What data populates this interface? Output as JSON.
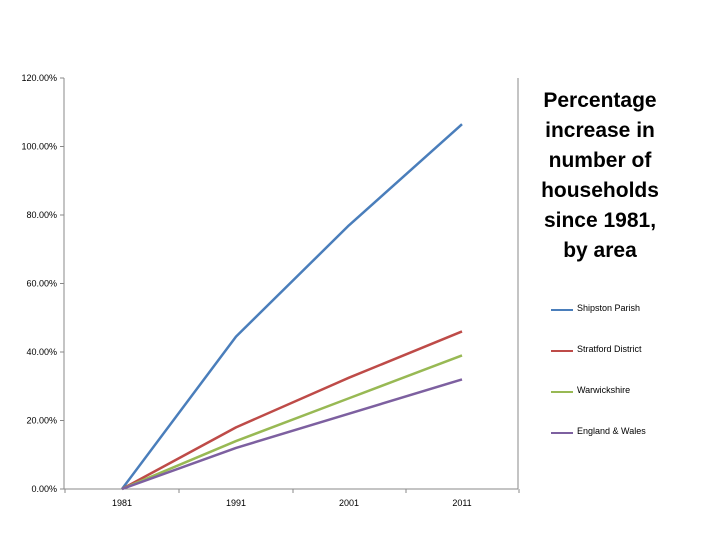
{
  "chart_data": {
    "type": "line",
    "title_lines": [
      "Percentage",
      "increase in",
      "number of",
      "households",
      "since 1981,",
      "by area"
    ],
    "categories": [
      "1981",
      "1991",
      "2001",
      "2011"
    ],
    "y_ticks": [
      "0.00%",
      "20.00%",
      "40.00%",
      "60.00%",
      "80.00%",
      "100.00%",
      "120.00%"
    ],
    "ylim": [
      0,
      120
    ],
    "grid": false,
    "legend_position": "right",
    "series": [
      {
        "name": "Shipston Parish",
        "color": "#4a7ebb",
        "values": [
          0,
          44.5,
          77,
          106.5
        ]
      },
      {
        "name": "Stratford District",
        "color": "#be4b48",
        "values": [
          0,
          18,
          32.5,
          46
        ]
      },
      {
        "name": "Warwickshire",
        "color": "#98b954",
        "values": [
          0,
          14,
          26.5,
          39
        ]
      },
      {
        "name": "England & Wales",
        "color": "#7d60a0",
        "values": [
          0,
          12,
          22,
          32
        ]
      }
    ]
  }
}
